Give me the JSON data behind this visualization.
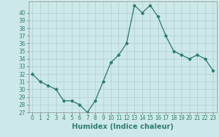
{
  "x": [
    0,
    1,
    2,
    3,
    4,
    5,
    6,
    7,
    8,
    9,
    10,
    11,
    12,
    13,
    14,
    15,
    16,
    17,
    18,
    19,
    20,
    21,
    22,
    23
  ],
  "y": [
    32,
    31,
    30.5,
    30,
    28.5,
    28.5,
    28,
    27,
    28.5,
    31,
    33.5,
    34.5,
    36,
    41,
    40,
    41,
    39.5,
    37,
    35,
    34.5,
    34,
    34.5,
    34,
    32.5
  ],
  "line_color": "#2e7d6e",
  "marker": "D",
  "marker_size": 2,
  "bg_color": "#cde8e8",
  "grid_color": "#b0cccc",
  "xlabel": "Humidex (Indice chaleur)",
  "xlim": [
    -0.5,
    23.5
  ],
  "ylim": [
    27,
    41.5
  ],
  "yticks": [
    27,
    28,
    29,
    30,
    31,
    32,
    33,
    34,
    35,
    36,
    37,
    38,
    39,
    40
  ],
  "xticks": [
    0,
    1,
    2,
    3,
    4,
    5,
    6,
    7,
    8,
    9,
    10,
    11,
    12,
    13,
    14,
    15,
    16,
    17,
    18,
    19,
    20,
    21,
    22,
    23
  ],
  "tick_fontsize": 5.5,
  "xlabel_fontsize": 7.5,
  "line_width": 1.0
}
